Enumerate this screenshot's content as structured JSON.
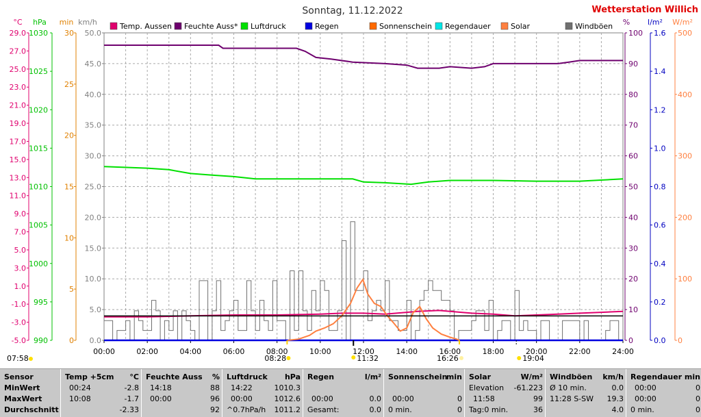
{
  "chart_data": {
    "type": "line",
    "title": "Sonntag, 11.12.2022",
    "station": "Wetterstation Willich",
    "x_range_hours": [
      0,
      24
    ],
    "x_ticks": [
      "00:00",
      "02:00",
      "04:00",
      "06:00",
      "08:00",
      "10:00",
      "12:00",
      "14:00",
      "16:00",
      "18:00",
      "20:00",
      "22:00",
      "24:00"
    ],
    "grid": true,
    "legend_placement": "top",
    "legend": [
      {
        "name": "Temp. Aussen",
        "color": "#e0006e"
      },
      {
        "name": "Feuchte Auss*",
        "color": "#6e006e"
      },
      {
        "name": "Luftdruck",
        "color": "#00e000"
      },
      {
        "name": "Regen",
        "color": "#0000e0"
      },
      {
        "name": "Sonnenschein",
        "color": "#ff6a00"
      },
      {
        "name": "Regendauer",
        "color": "#00e6e6"
      },
      {
        "name": "Solar",
        "color": "#ff8040"
      },
      {
        "name": "Windböen",
        "color": "#707070"
      }
    ],
    "axes": {
      "temp": {
        "unit": "°C",
        "color": "#e0006e",
        "min": -5,
        "max": 29,
        "ticks": [
          "29.0",
          "27.0",
          "25.0",
          "23.0",
          "21.0",
          "19.0",
          "17.0",
          "15.0",
          "13.0",
          "11.0",
          "9.0",
          "7.0",
          "5.0",
          "3.0",
          "1.0",
          "-1.0",
          "-3.0",
          "-5.0"
        ]
      },
      "pressure": {
        "unit": "hPa",
        "color": "#00c000",
        "min": 990,
        "max": 1030,
        "ticks": [
          "1030",
          "1025",
          "1020",
          "1015",
          "1010",
          "1005",
          "1000",
          "995",
          "990"
        ]
      },
      "minutes": {
        "unit": "min",
        "color": "#e08000",
        "min": 0,
        "max": 30,
        "ticks": [
          "30",
          "25",
          "20",
          "15",
          "10",
          "5",
          "0"
        ]
      },
      "wind": {
        "unit": "km/h",
        "color": "#808080",
        "min": 0,
        "max": 50,
        "ticks": [
          "50.0",
          "45.0",
          "40.0",
          "35.0",
          "30.0",
          "25.0",
          "20.0",
          "15.0",
          "10.0",
          "5.0",
          "0.0"
        ]
      },
      "humidity": {
        "unit": "%",
        "color": "#6e006e",
        "min": 0,
        "max": 100,
        "ticks": [
          "100",
          "90",
          "80",
          "70",
          "60",
          "50",
          "40",
          "30",
          "20",
          "10",
          "0"
        ]
      },
      "rain": {
        "unit": "l/m²",
        "color": "#0000c0",
        "min": 0,
        "max": 1.6,
        "ticks": [
          "1.6",
          "1.4",
          "1.2",
          "1.0",
          "0.8",
          "0.6",
          "0.4",
          "0.2",
          "0.0"
        ]
      },
      "solar": {
        "unit": "W/m²",
        "color": "#ff8040",
        "min": 0,
        "max": 500,
        "ticks": [
          "500",
          "400",
          "300",
          "200",
          "100",
          "0"
        ]
      }
    },
    "series": [
      {
        "name": "Temp. Aussen",
        "axis": "temp",
        "color": "#e0006e",
        "points": [
          [
            0,
            -2.4
          ],
          [
            2,
            -2.4
          ],
          [
            4,
            -2.3
          ],
          [
            6,
            -2.2
          ],
          [
            8,
            -2.2
          ],
          [
            10,
            -2.1
          ],
          [
            11,
            -2.0
          ],
          [
            12,
            -2.0
          ],
          [
            13,
            -2.1
          ],
          [
            14,
            -1.9
          ],
          [
            14.5,
            -1.8
          ],
          [
            15.5,
            -1.7
          ],
          [
            16,
            -1.8
          ],
          [
            17,
            -2.0
          ],
          [
            18,
            -2.1
          ],
          [
            19,
            -2.3
          ],
          [
            20,
            -2.2
          ],
          [
            21,
            -2.1
          ],
          [
            22,
            -2.0
          ],
          [
            23,
            -1.9
          ],
          [
            24,
            -1.8
          ]
        ]
      },
      {
        "name": "Feuchte Auss*",
        "axis": "humidity",
        "color": "#6e006e",
        "points": [
          [
            0,
            96
          ],
          [
            5.3,
            96
          ],
          [
            5.5,
            95
          ],
          [
            8.9,
            95
          ],
          [
            9.3,
            94
          ],
          [
            9.8,
            92
          ],
          [
            10.5,
            91.5
          ],
          [
            11.5,
            90.5
          ],
          [
            13,
            90
          ],
          [
            14,
            89.5
          ],
          [
            14.5,
            88.5
          ],
          [
            15.5,
            88.5
          ],
          [
            16,
            89
          ],
          [
            17,
            88.5
          ],
          [
            17.6,
            89
          ],
          [
            18,
            90
          ],
          [
            21,
            90
          ],
          [
            21.5,
            90.5
          ],
          [
            22,
            91
          ],
          [
            24,
            91
          ]
        ]
      },
      {
        "name": "Luftdruck",
        "axis": "pressure",
        "color": "#00e000",
        "points": [
          [
            0,
            1012.6
          ],
          [
            2,
            1012.4
          ],
          [
            3,
            1012.2
          ],
          [
            4,
            1011.7
          ],
          [
            5,
            1011.5
          ],
          [
            6,
            1011.3
          ],
          [
            7,
            1011.0
          ],
          [
            8,
            1011.0
          ],
          [
            10,
            1011.0
          ],
          [
            11.5,
            1011.0
          ],
          [
            12,
            1010.6
          ],
          [
            13,
            1010.5
          ],
          [
            14.2,
            1010.3
          ],
          [
            15,
            1010.6
          ],
          [
            16,
            1010.8
          ],
          [
            18,
            1010.8
          ],
          [
            20,
            1010.7
          ],
          [
            22,
            1010.7
          ],
          [
            24,
            1011.0
          ]
        ]
      },
      {
        "name": "Regen",
        "axis": "rain",
        "color": "#0000e0",
        "points": [
          [
            0,
            0
          ],
          [
            24,
            0
          ]
        ]
      },
      {
        "name": "Solar",
        "axis": "solar",
        "color": "#ff8040",
        "points": [
          [
            8.5,
            0
          ],
          [
            9.0,
            2
          ],
          [
            9.5,
            8
          ],
          [
            9.8,
            15
          ],
          [
            10.2,
            20
          ],
          [
            10.6,
            27
          ],
          [
            11.0,
            40
          ],
          [
            11.4,
            60
          ],
          [
            11.7,
            85
          ],
          [
            11.97,
            99
          ],
          [
            12.2,
            75
          ],
          [
            12.5,
            60
          ],
          [
            12.8,
            55
          ],
          [
            13.1,
            40
          ],
          [
            13.4,
            28
          ],
          [
            13.7,
            15
          ],
          [
            14.0,
            20
          ],
          [
            14.3,
            45
          ],
          [
            14.6,
            55
          ],
          [
            14.9,
            35
          ],
          [
            15.2,
            20
          ],
          [
            15.6,
            10
          ],
          [
            16.0,
            5
          ],
          [
            16.3,
            2
          ],
          [
            16.43,
            0
          ]
        ]
      },
      {
        "name": "Windböen",
        "axis": "wind",
        "color": "#707070",
        "step": 0.2,
        "seed": 7,
        "max": 19.3
      }
    ],
    "reference_lines": [
      {
        "axis": "temp",
        "value": -2.3,
        "color": "#000000",
        "label": "temp-average-line"
      }
    ],
    "markers": {
      "sunrise": "07:58",
      "sunset": "19:04",
      "solar_start": "08:28",
      "solar_noon": "11:32",
      "solar_end": "16:26"
    }
  },
  "stats": {
    "rows": [
      "Sensor",
      "MinWert",
      "MaxWert",
      "Durchschnitt"
    ],
    "columns": [
      {
        "title": "Temp +5cm",
        "unit": "°C",
        "rows": [
          [
            "00:24",
            "-2.8"
          ],
          [
            "10:08",
            "-1.7"
          ],
          [
            "",
            "-2.33"
          ]
        ]
      },
      {
        "title": "Feuchte Auss",
        "unit": "%",
        "rows": [
          [
            "14:18",
            "88"
          ],
          [
            "00:00",
            "96"
          ],
          [
            "",
            "92"
          ]
        ]
      },
      {
        "title": "Luftdruck",
        "unit": "hPa",
        "rows": [
          [
            "14:22",
            "1010.3"
          ],
          [
            "00:00",
            "1012.6"
          ],
          [
            "^0.7hPa/h",
            "1011.2"
          ]
        ]
      },
      {
        "title": "Regen",
        "unit": "l/m²",
        "rows": [
          [
            "",
            ""
          ],
          [
            "00:00",
            "0.0"
          ],
          [
            "Gesamt:",
            "0.0"
          ]
        ]
      },
      {
        "title": "Sonnenschein",
        "unit": "min",
        "rows": [
          [
            "",
            ""
          ],
          [
            "00:00",
            "0"
          ],
          [
            "0 min.",
            "0"
          ]
        ]
      },
      {
        "title": "Solar",
        "unit": "W/m²",
        "rows": [
          [
            "Elevation",
            "-61.223"
          ],
          [
            "11:58",
            "99"
          ],
          [
            "Tag:0 min.",
            "36"
          ]
        ]
      },
      {
        "title": "Windböen",
        "unit": "km/h",
        "rows": [
          [
            "Ø 10 min.",
            "0.0"
          ],
          [
            "11:28  S-SW",
            "19.3"
          ],
          [
            "",
            "4.0"
          ]
        ]
      },
      {
        "title": "Regendauer",
        "unit": "min",
        "rows": [
          [
            "00:00",
            "0"
          ],
          [
            "00:00",
            "0"
          ],
          [
            "0 min.",
            "0"
          ]
        ]
      }
    ]
  }
}
